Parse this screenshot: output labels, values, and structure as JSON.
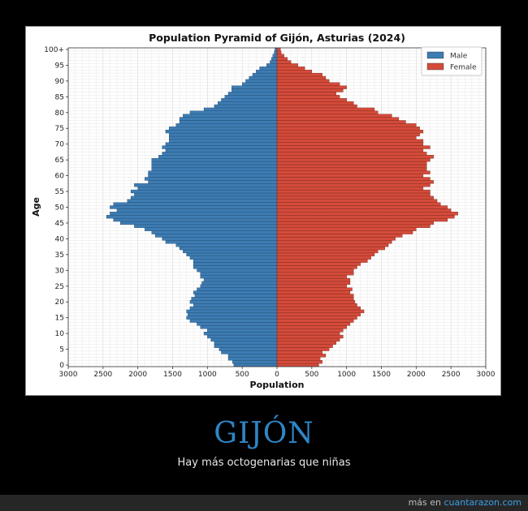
{
  "chart_data": {
    "type": "bar",
    "orientation": "horizontal",
    "title": "Population Pyramid of Gijón, Asturias (2024)",
    "xlabel": "Population",
    "ylabel": "Age",
    "xlim": [
      -3000,
      3000
    ],
    "x_ticks": [
      -3000,
      -2500,
      -2000,
      -1500,
      -1000,
      -500,
      0,
      500,
      1000,
      1500,
      2000,
      2500,
      3000
    ],
    "x_tick_labels": [
      "3000",
      "2500",
      "2000",
      "1500",
      "1000",
      "500",
      "0",
      "500",
      "1000",
      "1500",
      "2000",
      "2500",
      "3000"
    ],
    "y_ticks": [
      0,
      5,
      10,
      15,
      20,
      25,
      30,
      35,
      40,
      45,
      50,
      55,
      60,
      65,
      70,
      75,
      80,
      85,
      90,
      95,
      100
    ],
    "y_tick_labels": [
      "0",
      "5",
      "10",
      "15",
      "20",
      "25",
      "30",
      "35",
      "40",
      "45",
      "50",
      "55",
      "60",
      "65",
      "70",
      "75",
      "80",
      "85",
      "90",
      "95",
      "100+"
    ],
    "grid": true,
    "legend_position": "top-right",
    "categories": [
      "0",
      "1",
      "2",
      "3",
      "4",
      "5",
      "6",
      "7",
      "8",
      "9",
      "10",
      "11",
      "12",
      "13",
      "14",
      "15",
      "16",
      "17",
      "18",
      "19",
      "20",
      "21",
      "22",
      "23",
      "24",
      "25",
      "26",
      "27",
      "28",
      "29",
      "30",
      "31",
      "32",
      "33",
      "34",
      "35",
      "36",
      "37",
      "38",
      "39",
      "40",
      "41",
      "42",
      "43",
      "44",
      "45",
      "46",
      "47",
      "48",
      "49",
      "50",
      "51",
      "52",
      "53",
      "54",
      "55",
      "56",
      "57",
      "58",
      "59",
      "60",
      "61",
      "62",
      "63",
      "64",
      "65",
      "66",
      "67",
      "68",
      "69",
      "70",
      "71",
      "72",
      "73",
      "74",
      "75",
      "76",
      "77",
      "78",
      "79",
      "80",
      "81",
      "82",
      "83",
      "84",
      "85",
      "86",
      "87",
      "88",
      "89",
      "90",
      "91",
      "92",
      "93",
      "94",
      "95",
      "96",
      "97",
      "98",
      "99",
      "100+"
    ],
    "series": [
      {
        "name": "Male",
        "color": "#3d7cb3",
        "values": [
          620,
          640,
          700,
          700,
          800,
          830,
          900,
          900,
          950,
          1000,
          1050,
          1000,
          1100,
          1150,
          1250,
          1300,
          1280,
          1300,
          1250,
          1200,
          1250,
          1230,
          1180,
          1200,
          1150,
          1100,
          1080,
          1050,
          1100,
          1100,
          1150,
          1200,
          1200,
          1200,
          1250,
          1300,
          1350,
          1400,
          1450,
          1600,
          1650,
          1750,
          1800,
          1900,
          2050,
          2250,
          2350,
          2450,
          2400,
          2300,
          2400,
          2350,
          2150,
          2100,
          2050,
          2100,
          2000,
          2050,
          1850,
          1900,
          1850,
          1850,
          1800,
          1800,
          1800,
          1800,
          1700,
          1650,
          1600,
          1650,
          1600,
          1550,
          1550,
          1550,
          1600,
          1550,
          1450,
          1400,
          1400,
          1350,
          1250,
          1050,
          900,
          850,
          800,
          750,
          700,
          650,
          650,
          500,
          450,
          400,
          350,
          300,
          250,
          150,
          100,
          80,
          60,
          40,
          30
        ]
      },
      {
        "name": "Female",
        "color": "#d44b3a",
        "values": [
          600,
          650,
          620,
          700,
          650,
          750,
          800,
          850,
          900,
          950,
          900,
          950,
          1000,
          1050,
          1100,
          1150,
          1200,
          1250,
          1200,
          1150,
          1120,
          1100,
          1100,
          1050,
          1080,
          1000,
          1050,
          1050,
          1000,
          1100,
          1100,
          1150,
          1200,
          1300,
          1350,
          1400,
          1450,
          1550,
          1600,
          1650,
          1700,
          1800,
          1950,
          2000,
          2200,
          2250,
          2450,
          2550,
          2600,
          2500,
          2450,
          2350,
          2300,
          2250,
          2200,
          2200,
          2100,
          2200,
          2250,
          2200,
          2100,
          2200,
          2150,
          2150,
          2150,
          2200,
          2250,
          2150,
          2100,
          2200,
          2100,
          2100,
          2000,
          2050,
          2100,
          2050,
          2000,
          1850,
          1750,
          1650,
          1450,
          1400,
          1150,
          1100,
          1000,
          900,
          850,
          950,
          1000,
          900,
          750,
          700,
          650,
          500,
          400,
          300,
          200,
          150,
          100,
          60,
          50
        ]
      }
    ]
  },
  "caption": {
    "title": "GIJÓN",
    "subtitle": "Hay más octogenarias que niñas"
  },
  "footer": {
    "prefix": "más en ",
    "link": "cuantarazon.com"
  }
}
